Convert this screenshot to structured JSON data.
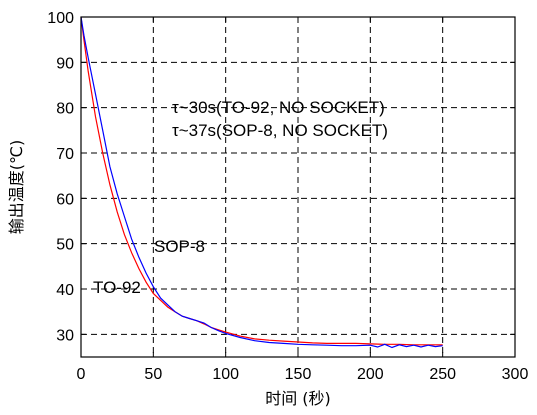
{
  "chart_data": {
    "type": "line",
    "title": "",
    "xlabel": "时间 (秒)",
    "ylabel": "输出温度(℃)",
    "xlim": [
      0,
      300
    ],
    "ylim": [
      25,
      100
    ],
    "xticks": [
      0,
      50,
      100,
      150,
      200,
      250,
      300
    ],
    "yticks": [
      30,
      40,
      50,
      60,
      70,
      80,
      90,
      100
    ],
    "grid": true,
    "legend": "none",
    "annotations": [
      "τ~30s(TO-92, NO SOCKET)",
      "τ~37s(SOP-8, NO SOCKET)"
    ],
    "series": [
      {
        "name": "TO-92",
        "color": "#ff0000",
        "x": [
          0,
          2,
          5,
          10,
          15,
          20,
          25,
          30,
          35,
          40,
          45,
          50,
          55,
          60,
          65,
          70,
          75,
          80,
          85,
          90,
          95,
          100,
          110,
          120,
          130,
          140,
          150,
          160,
          170,
          180,
          190,
          200,
          210,
          220,
          230,
          240,
          250
        ],
        "y": [
          100,
          95,
          88,
          78,
          70,
          63,
          57,
          52,
          48,
          44.5,
          41.5,
          39,
          37.5,
          36,
          35,
          34,
          33.5,
          33,
          32.3,
          31.5,
          31,
          30.5,
          29.6,
          29,
          28.7,
          28.5,
          28.3,
          28.1,
          28,
          28,
          28,
          27.9,
          27.8,
          27.8,
          27.7,
          27.7,
          27.7
        ]
      },
      {
        "name": "SOP-8",
        "color": "#0000ff",
        "x": [
          0,
          2,
          5,
          10,
          15,
          20,
          25,
          30,
          35,
          40,
          45,
          50,
          55,
          60,
          65,
          70,
          75,
          80,
          85,
          90,
          95,
          100,
          110,
          120,
          130,
          140,
          150,
          160,
          170,
          180,
          190,
          200,
          205,
          210,
          215,
          220,
          225,
          230,
          235,
          240,
          245,
          250
        ],
        "y": [
          100,
          96,
          91,
          83,
          75,
          67,
          61,
          56,
          51,
          47,
          43.5,
          40.5,
          38,
          36.5,
          35,
          34,
          33.5,
          33,
          32.5,
          31.5,
          30.8,
          30.2,
          29.3,
          28.6,
          28.2,
          28,
          27.8,
          27.7,
          27.6,
          27.5,
          27.5,
          27.6,
          27.2,
          27.8,
          27.1,
          27.7,
          27.3,
          27.6,
          27.2,
          27.6,
          27.3,
          27.5
        ]
      }
    ],
    "series_labels": [
      "SOP-8",
      "TO-92"
    ]
  }
}
